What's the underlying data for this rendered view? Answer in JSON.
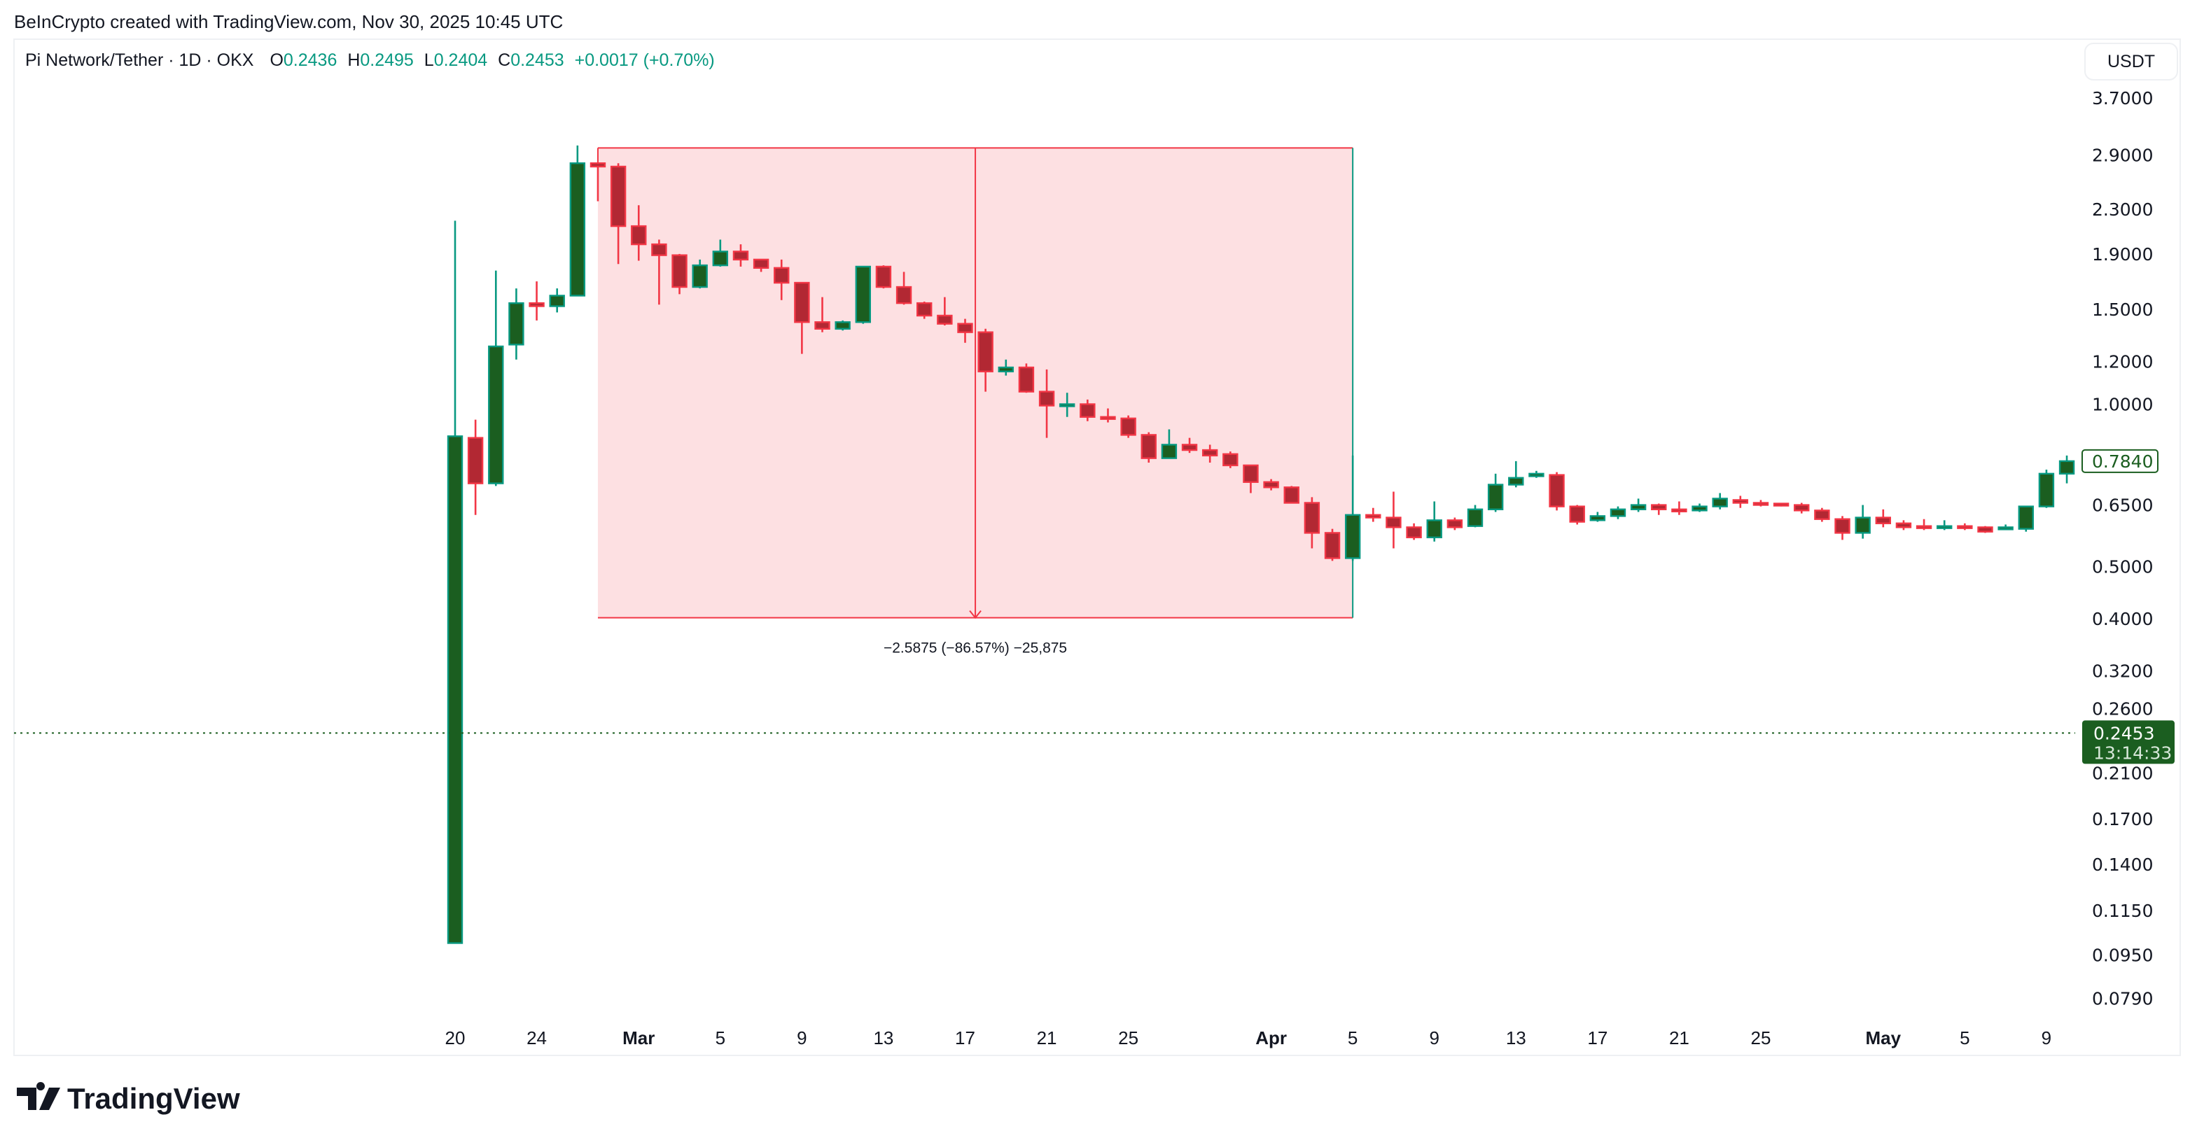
{
  "header": {
    "credit": "BeInCrypto created with TradingView.com, Nov 30, 2025 10:45 UTC"
  },
  "legend": {
    "symbol": "Pi Network/Tether · 1D · OKX",
    "o_label": "O",
    "o_value": "0.2436",
    "h_label": "H",
    "h_value": "0.2495",
    "l_label": "L",
    "l_value": "0.2404",
    "c_label": "C",
    "c_value": "0.2453",
    "change": "+0.0017 (+0.70%)"
  },
  "price_axis": {
    "currency_button": "USDT",
    "last_close_label": "0.7840",
    "current_price_label": "0.2453",
    "countdown": "13:14:33"
  },
  "measure": {
    "label": "−2.5875 (−86.57%) −25,875"
  },
  "footer": {
    "logo_text": "TradingView"
  },
  "colors": {
    "up_body": "#1b5e20",
    "up_border": "#089981",
    "down_body": "#b22833",
    "down_border": "#f23645",
    "measure_fill": "#fde0e2",
    "measure_stroke": "#f23645",
    "price_line": "#1b5e20"
  },
  "chart_data": {
    "type": "candlestick",
    "interval": "1D",
    "y_scale": "log",
    "ylim": [
      0.075,
      3.9
    ],
    "y_ticks": [
      "3.7000",
      "2.9000",
      "2.3000",
      "1.9000",
      "1.5000",
      "1.2000",
      "1.0000",
      "0.6500",
      "0.5000",
      "0.4000",
      "0.3200",
      "0.2600",
      "0.2100",
      "0.1700",
      "0.1400",
      "0.1150",
      "0.0950",
      "0.0790"
    ],
    "x_ticks": [
      {
        "label": "20",
        "day": 0
      },
      {
        "label": "24",
        "day": 4
      },
      {
        "label": "Mar",
        "day": 9
      },
      {
        "label": "5",
        "day": 13
      },
      {
        "label": "9",
        "day": 17
      },
      {
        "label": "13",
        "day": 21
      },
      {
        "label": "17",
        "day": 25
      },
      {
        "label": "21",
        "day": 29
      },
      {
        "label": "25",
        "day": 33
      },
      {
        "label": "Apr",
        "day": 40
      },
      {
        "label": "5",
        "day": 44
      },
      {
        "label": "9",
        "day": 48
      },
      {
        "label": "13",
        "day": 52
      },
      {
        "label": "17",
        "day": 56
      },
      {
        "label": "21",
        "day": 60
      },
      {
        "label": "25",
        "day": 64
      },
      {
        "label": "May",
        "day": 70
      },
      {
        "label": "5",
        "day": 74
      },
      {
        "label": "9",
        "day": 78
      }
    ],
    "ohlc_columns": [
      "open",
      "high",
      "low",
      "close"
    ],
    "candles": [
      [
        0.1,
        2.19,
        0.1,
        0.872
      ],
      [
        0.866,
        0.936,
        0.623,
        0.713
      ],
      [
        0.713,
        1.77,
        0.705,
        1.28
      ],
      [
        1.29,
        1.64,
        1.21,
        1.54
      ],
      [
        1.54,
        1.69,
        1.43,
        1.52
      ],
      [
        1.52,
        1.64,
        1.48,
        1.59
      ],
      [
        1.59,
        3.02,
        1.59,
        2.8
      ],
      [
        2.8,
        2.8,
        2.38,
        2.76
      ],
      [
        2.76,
        2.8,
        1.82,
        2.14
      ],
      [
        2.14,
        2.34,
        1.846,
        1.98
      ],
      [
        1.98,
        2.02,
        1.53,
        1.89
      ],
      [
        1.89,
        1.9,
        1.6,
        1.65
      ],
      [
        1.65,
        1.855,
        1.64,
        1.81
      ],
      [
        1.81,
        2.02,
        1.8,
        1.92
      ],
      [
        1.92,
        1.98,
        1.8,
        1.855
      ],
      [
        1.855,
        1.855,
        1.76,
        1.79
      ],
      [
        1.79,
        1.855,
        1.56,
        1.68
      ],
      [
        1.68,
        1.68,
        1.24,
        1.42
      ],
      [
        1.42,
        1.58,
        1.36,
        1.38
      ],
      [
        1.38,
        1.43,
        1.37,
        1.42
      ],
      [
        1.42,
        1.8,
        1.41,
        1.8
      ],
      [
        1.8,
        1.81,
        1.64,
        1.65
      ],
      [
        1.65,
        1.76,
        1.53,
        1.54
      ],
      [
        1.54,
        1.55,
        1.44,
        1.46
      ],
      [
        1.46,
        1.58,
        1.4,
        1.41
      ],
      [
        1.41,
        1.44,
        1.3,
        1.36
      ],
      [
        1.36,
        1.38,
        1.055,
        1.15
      ],
      [
        1.15,
        1.21,
        1.13,
        1.17
      ],
      [
        1.17,
        1.19,
        1.05,
        1.055
      ],
      [
        1.055,
        1.16,
        0.866,
        0.994
      ],
      [
        0.994,
        1.05,
        0.947,
        1.0
      ],
      [
        1.0,
        1.02,
        0.93,
        0.947
      ],
      [
        0.947,
        0.982,
        0.925,
        0.941
      ],
      [
        0.941,
        0.953,
        0.866,
        0.877
      ],
      [
        0.877,
        0.887,
        0.779,
        0.794
      ],
      [
        0.794,
        0.898,
        0.794,
        0.841
      ],
      [
        0.841,
        0.866,
        0.812,
        0.822
      ],
      [
        0.822,
        0.841,
        0.779,
        0.803
      ],
      [
        0.808,
        0.817,
        0.761,
        0.77
      ],
      [
        0.77,
        0.77,
        0.684,
        0.717
      ],
      [
        0.717,
        0.726,
        0.692,
        0.701
      ],
      [
        0.701,
        0.705,
        0.654,
        0.656
      ],
      [
        0.656,
        0.672,
        0.54,
        0.577
      ],
      [
        0.577,
        0.587,
        0.512,
        0.518
      ],
      [
        0.518,
        0.803,
        0.512,
        0.623
      ],
      [
        0.623,
        0.642,
        0.605,
        0.616
      ],
      [
        0.616,
        0.688,
        0.54,
        0.591
      ],
      [
        0.591,
        0.601,
        0.56,
        0.566
      ],
      [
        0.566,
        0.66,
        0.556,
        0.609
      ],
      [
        0.609,
        0.616,
        0.584,
        0.591
      ],
      [
        0.594,
        0.65,
        0.591,
        0.638
      ],
      [
        0.638,
        0.743,
        0.631,
        0.709
      ],
      [
        0.709,
        0.784,
        0.701,
        0.73
      ],
      [
        0.735,
        0.752,
        0.73,
        0.743
      ],
      [
        0.739,
        0.748,
        0.635,
        0.646
      ],
      [
        0.646,
        0.65,
        0.598,
        0.605
      ],
      [
        0.609,
        0.631,
        0.605,
        0.62
      ],
      [
        0.62,
        0.646,
        0.612,
        0.638
      ],
      [
        0.638,
        0.668,
        0.631,
        0.65
      ],
      [
        0.65,
        0.654,
        0.623,
        0.638
      ],
      [
        0.638,
        0.66,
        0.623,
        0.635
      ],
      [
        0.635,
        0.654,
        0.631,
        0.646
      ],
      [
        0.646,
        0.684,
        0.638,
        0.668
      ],
      [
        0.664,
        0.676,
        0.642,
        0.656
      ],
      [
        0.656,
        0.664,
        0.646,
        0.654
      ],
      [
        0.654,
        0.656,
        0.646,
        0.65
      ],
      [
        0.65,
        0.656,
        0.627,
        0.635
      ],
      [
        0.635,
        0.642,
        0.605,
        0.612
      ],
      [
        0.612,
        0.62,
        0.56,
        0.577
      ],
      [
        0.577,
        0.65,
        0.563,
        0.616
      ],
      [
        0.616,
        0.638,
        0.591,
        0.601
      ],
      [
        0.601,
        0.609,
        0.584,
        0.591
      ],
      [
        0.594,
        0.612,
        0.584,
        0.591
      ],
      [
        0.591,
        0.609,
        0.584,
        0.594
      ],
      [
        0.594,
        0.601,
        0.584,
        0.591
      ],
      [
        0.591,
        0.594,
        0.577,
        0.58
      ],
      [
        0.587,
        0.598,
        0.584,
        0.591
      ],
      [
        0.587,
        0.646,
        0.58,
        0.646
      ],
      [
        0.646,
        0.756,
        0.642,
        0.743
      ],
      [
        0.743,
        0.803,
        0.713,
        0.784
      ]
    ],
    "measure_range": {
      "from_day": 7,
      "to_day": 44,
      "top_price": 2.989,
      "bottom_price": 0.4015,
      "arrow": "down"
    },
    "current_price_line": 0.2453,
    "last_close_marker": 0.784
  }
}
